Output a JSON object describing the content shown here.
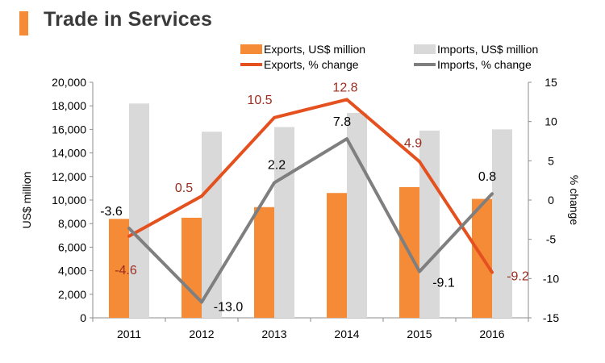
{
  "page": {
    "title": "Trade in Services"
  },
  "colors": {
    "accent": "#f68b37",
    "exports_bar": "#f68b37",
    "imports_bar": "#d9d9d9",
    "exports_line": "#e4501e",
    "imports_line": "#7f7f7f",
    "exports_label": "#9b2d1f",
    "imports_label": "#000000"
  },
  "chart_data": {
    "type": "bar",
    "title": "Trade in Services",
    "categories": [
      "2011",
      "2012",
      "2013",
      "2014",
      "2015",
      "2016"
    ],
    "ylabel": "US$ million",
    "y2label": "% change",
    "ylim": [
      0,
      20000
    ],
    "y2lim": [
      -15,
      15
    ],
    "yticks": [
      "0",
      "2,000",
      "4,000",
      "6,000",
      "8,000",
      "10,000",
      "12,000",
      "14,000",
      "16,000",
      "18,000",
      "20,000"
    ],
    "y2ticks": [
      "-15",
      "-10",
      "-5",
      "0",
      "5",
      "10",
      "15"
    ],
    "legend_position": "top-right",
    "grid": false,
    "bar_series": [
      {
        "name": "Exports, US$ million",
        "values": [
          8400,
          8500,
          9400,
          10600,
          11100,
          10100
        ]
      },
      {
        "name": "Imports, US$ million",
        "values": [
          18200,
          15800,
          16200,
          17400,
          15900,
          16000
        ]
      }
    ],
    "line_series": [
      {
        "name": "Exports, % change",
        "values": [
          -4.6,
          0.5,
          10.5,
          12.8,
          4.9,
          -9.2
        ],
        "labels": [
          "-4.6",
          "0.5",
          "10.5",
          "12.8",
          "4.9",
          "-9.2"
        ]
      },
      {
        "name": "Imports, % change",
        "values": [
          -3.6,
          -13.0,
          2.2,
          7.8,
          -9.1,
          0.8
        ],
        "labels": [
          "-3.6",
          "-13.0",
          "2.2",
          "7.8",
          "-9.1",
          "0.8"
        ]
      }
    ]
  }
}
